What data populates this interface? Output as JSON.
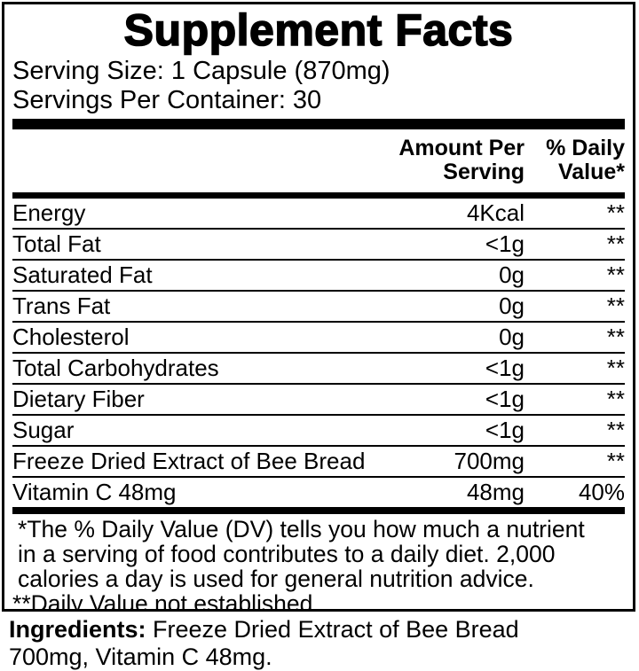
{
  "label": {
    "title": "Supplement Facts",
    "serving_size": "Serving Size: 1 Capsule (870mg)",
    "servings_per_container": "Servings Per Container: 30",
    "columns": {
      "amount_header": "Amount Per\nServing",
      "daily_value_header": "% Daily\nValue*"
    },
    "rows": [
      {
        "name": "Energy",
        "amount": "4Kcal",
        "dv": "**"
      },
      {
        "name": "Total Fat",
        "amount": "<1g",
        "dv": "**"
      },
      {
        "name": "Saturated Fat",
        "amount": "0g",
        "dv": "**"
      },
      {
        "name": "Trans Fat",
        "amount": "0g",
        "dv": "**"
      },
      {
        "name": "Cholesterol",
        "amount": "0g",
        "dv": "**"
      },
      {
        "name": "Total Carbohydrates",
        "amount": "<1g",
        "dv": "**"
      },
      {
        "name": "Dietary Fiber",
        "amount": "<1g",
        "dv": "**"
      },
      {
        "name": "Sugar",
        "amount": "<1g",
        "dv": "**"
      },
      {
        "name": "Freeze Dried Extract of Bee Bread",
        "amount": "700mg",
        "dv": "**"
      },
      {
        "name": "Vitamin C 48mg",
        "amount": "48mg",
        "dv": "40%"
      }
    ],
    "footnote": [
      "*The % Daily Value (DV) tells you how much a nutrient",
      "in a serving of food contributes to a daily diet. 2,000",
      "calories a day is used for general nutrition advice.",
      "**Daily Value not established."
    ],
    "ingredients": {
      "bold_label": "Ingredients:",
      "line1_rest": " Freeze Dried Extract of Bee Bread",
      "line2": "700mg, Vitamin C 48mg."
    }
  },
  "colors": {
    "text": "#000000",
    "background": "#ffffff"
  }
}
